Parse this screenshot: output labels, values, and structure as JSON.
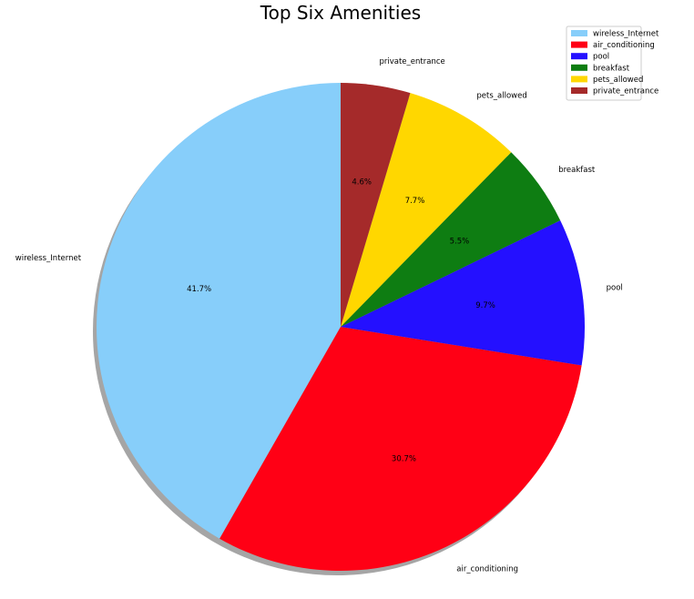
{
  "chart_data": {
    "type": "pie",
    "title": "Top Six Amenities",
    "categories": [
      "wireless_Internet",
      "air_conditioning",
      "pool",
      "breakfast",
      "pets_allowed",
      "private_entrance"
    ],
    "values": [
      41.7,
      30.7,
      9.7,
      5.5,
      7.7,
      4.6
    ],
    "pct_labels": [
      "41.7%",
      "30.7%",
      "9.7%",
      "5.5%",
      "7.7%",
      "4.6%"
    ],
    "colors": [
      "#87cefa",
      "#ff0015",
      "#2410ff",
      "#0e7d12",
      "#ffd700",
      "#a52a2a"
    ],
    "start_angle_deg": 90,
    "direction": "counterclockwise",
    "shadow": true,
    "legend": {
      "placement": "top-right",
      "entries": [
        "wireless_Internet",
        "air_conditioning",
        "pool",
        "breakfast",
        "pets_allowed",
        "private_entrance"
      ]
    }
  }
}
